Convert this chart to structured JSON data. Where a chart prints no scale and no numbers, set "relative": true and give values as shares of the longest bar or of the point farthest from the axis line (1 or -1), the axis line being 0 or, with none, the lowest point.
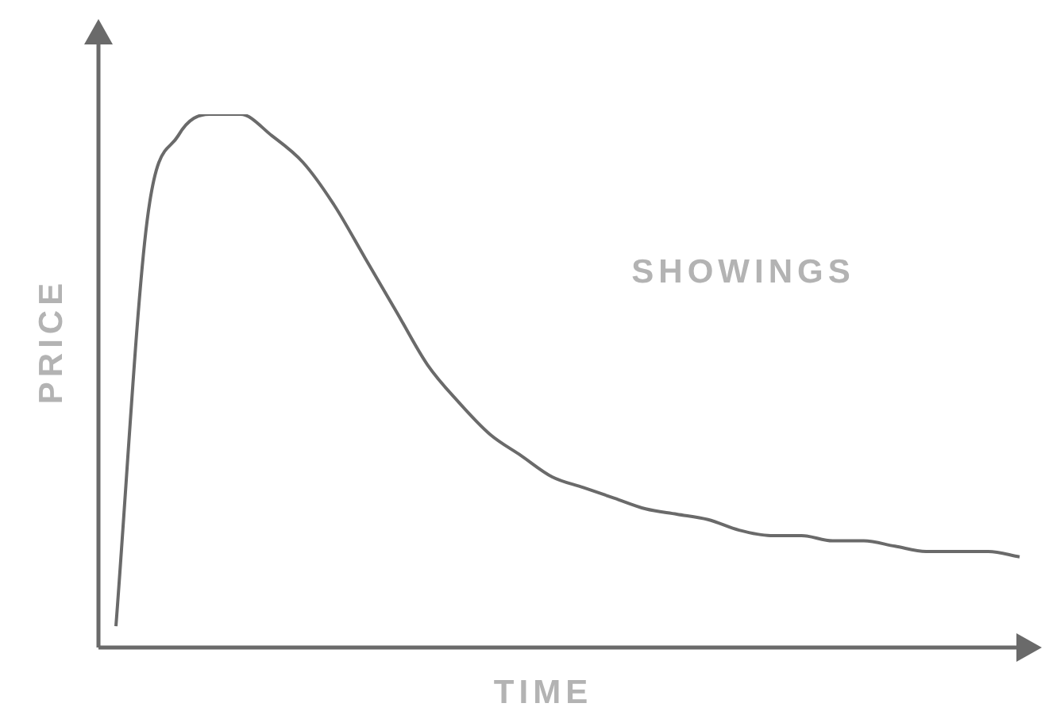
{
  "chart_data": {
    "type": "line",
    "relative": true,
    "xlabel": "TIME",
    "ylabel": "PRICE",
    "annotations": [
      "SHOWINGS"
    ],
    "color": "#6a6a6a",
    "marker": "none",
    "legend": false,
    "categories": [
      null,
      null,
      null,
      null,
      null,
      null,
      null,
      null,
      null,
      null,
      null,
      null,
      null,
      null,
      null,
      null,
      null,
      null,
      null,
      null,
      null,
      null,
      null,
      null,
      null,
      null,
      null,
      null,
      null,
      null
    ],
    "values": [
      0.04,
      0.8,
      0.96,
      1.0,
      1.0,
      0.96,
      0.91,
      0.83,
      0.73,
      0.63,
      0.53,
      0.46,
      0.4,
      0.36,
      0.32,
      0.3,
      0.28,
      0.26,
      0.25,
      0.24,
      0.22,
      0.21,
      0.21,
      0.2,
      0.2,
      0.19,
      0.18,
      0.18,
      0.18,
      0.17
    ]
  }
}
